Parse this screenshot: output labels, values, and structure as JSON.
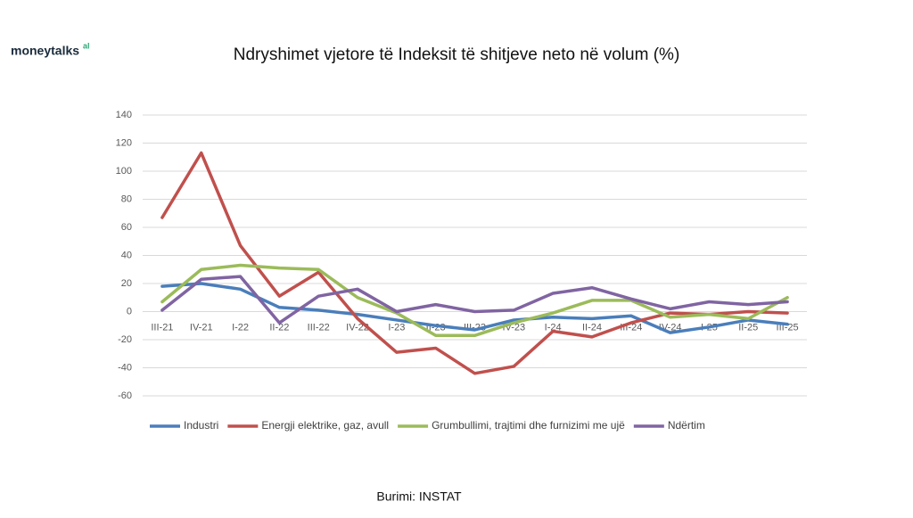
{
  "logo": {
    "text": "moneytalks",
    "suffix": "al"
  },
  "source": "Burimi: INSTAT",
  "chart_data": {
    "type": "line",
    "title": "Ndryshimet vjetore të Indeksit të shitjeve neto në volum (%)",
    "categories": [
      "III-21",
      "IV-21",
      "I-22",
      "II-22",
      "III-22",
      "IV-22",
      "I-23",
      "II-23",
      "III-23",
      "IV-23",
      "I-24",
      "II-24",
      "III-24",
      "IV-24",
      "I-25",
      "II-25",
      "III-25"
    ],
    "series": [
      {
        "name": "Industri",
        "color": "#4a7ebb",
        "values": [
          18,
          20,
          16,
          3,
          1,
          -2,
          -6,
          -10,
          -13,
          -6,
          -4,
          -5,
          -3,
          -15,
          -11,
          -6,
          -9
        ]
      },
      {
        "name": "Energji elektrike, gaz, avull",
        "color": "#c0504d",
        "values": [
          67,
          113,
          47,
          11,
          28,
          -5,
          -29,
          -26,
          -44,
          -39,
          -14,
          -18,
          -8,
          -1,
          -2,
          0,
          -1
        ]
      },
      {
        "name": "Grumbullimi, trajtimi dhe furnizimi me ujë",
        "color": "#9bbb59",
        "values": [
          7,
          30,
          33,
          31,
          30,
          10,
          -1,
          -17,
          -17,
          -8,
          -1,
          8,
          8,
          -4,
          -2,
          -5,
          10
        ]
      },
      {
        "name": "Ndërtim",
        "color": "#8064a2",
        "values": [
          1,
          23,
          25,
          -8,
          11,
          16,
          0,
          5,
          0,
          1,
          13,
          17,
          9,
          2,
          7,
          5,
          7
        ]
      }
    ],
    "ylim": [
      -60,
      140
    ],
    "yticks": [
      -60,
      -40,
      -20,
      0,
      20,
      40,
      60,
      80,
      100,
      120,
      140
    ],
    "grid": true
  }
}
